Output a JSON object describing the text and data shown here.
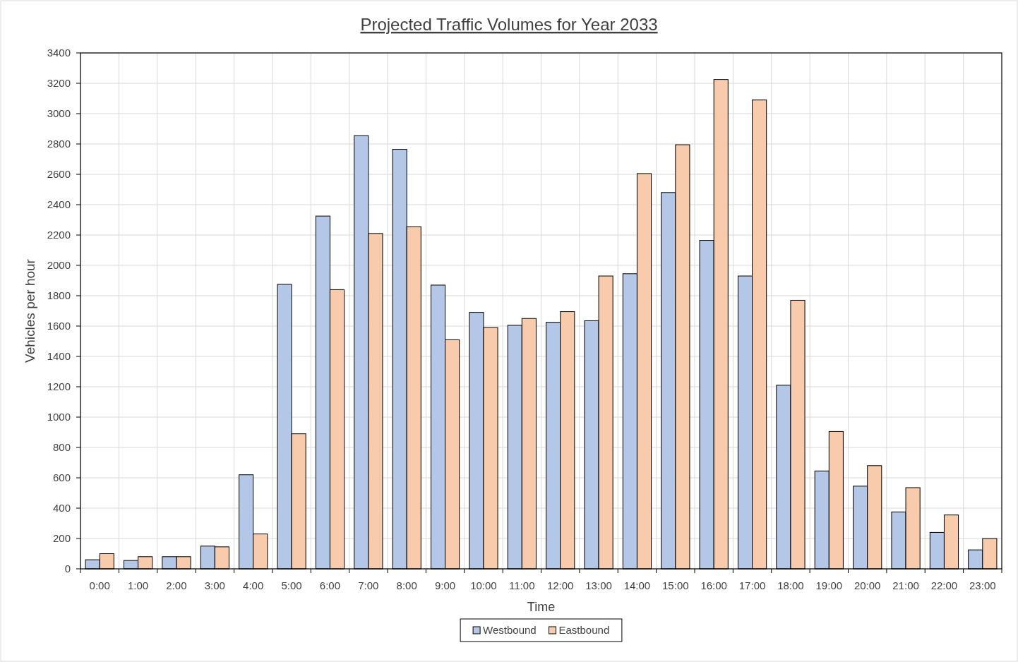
{
  "chart_data": {
    "type": "bar",
    "title": "Projected Traffic Volumes for Year 2033",
    "xlabel": "Time",
    "ylabel": "Vehicles per hour",
    "categories": [
      "0:00",
      "1:00",
      "2:00",
      "3:00",
      "4:00",
      "5:00",
      "6:00",
      "7:00",
      "8:00",
      "9:00",
      "10:00",
      "11:00",
      "12:00",
      "13:00",
      "14:00",
      "15:00",
      "16:00",
      "17:00",
      "18:00",
      "19:00",
      "20:00",
      "21:00",
      "22:00",
      "23:00"
    ],
    "series": [
      {
        "name": "Westbound",
        "color": "#b4c7e7",
        "values": [
          60,
          55,
          80,
          150,
          620,
          1875,
          2325,
          2855,
          2765,
          1870,
          1690,
          1605,
          1625,
          1635,
          1945,
          2480,
          2165,
          1930,
          1210,
          645,
          545,
          375,
          240,
          125
        ]
      },
      {
        "name": "Eastbound",
        "color": "#f8cbad",
        "values": [
          100,
          80,
          80,
          145,
          230,
          890,
          1840,
          2210,
          2255,
          1510,
          1590,
          1650,
          1695,
          1930,
          2605,
          2795,
          3225,
          3090,
          1770,
          905,
          680,
          535,
          355,
          200
        ]
      }
    ],
    "ylim": [
      0,
      3400
    ],
    "yticks": [
      0,
      200,
      400,
      600,
      800,
      1000,
      1200,
      1400,
      1600,
      1800,
      2000,
      2200,
      2400,
      2600,
      2800,
      3000,
      3200,
      3400
    ],
    "grid": true,
    "legend": "bottom"
  }
}
